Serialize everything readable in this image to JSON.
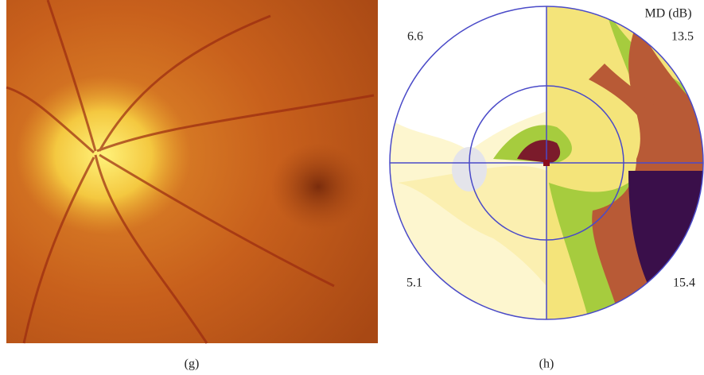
{
  "figure": {
    "left": {
      "caption": "(g)"
    },
    "right": {
      "caption": "(h)",
      "unit_label": "MD (dB)",
      "quadrants": {
        "upper_left": "6.6",
        "upper_right": "13.5",
        "lower_left": "5.1",
        "lower_right": "15.4"
      }
    }
  }
}
